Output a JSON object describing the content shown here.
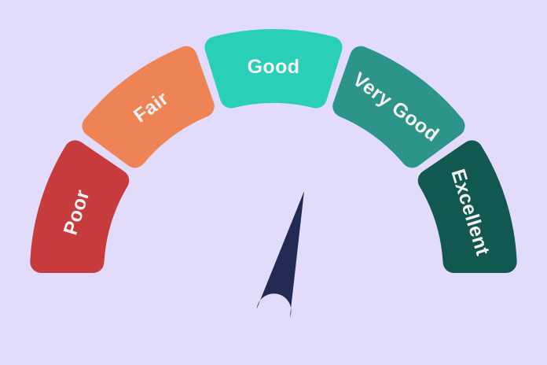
{
  "background_color": "#E3DBFA",
  "chart_data": {
    "type": "gauge",
    "title": "",
    "arc_span_deg": 180,
    "segment_span_deg": 34.2,
    "segment_gap_deg": 2.25,
    "categories": [
      "Poor",
      "Fair",
      "Good",
      "Very Good",
      "Excellent"
    ],
    "colors": [
      "#C83B3C",
      "#EE8455",
      "#2ACFB8",
      "#2D9489",
      "#115950"
    ],
    "label_color": "#F7F3F2",
    "needle": {
      "color": "#232B54",
      "angle_from_vertical_deg": 14.2,
      "points_to": "Good"
    }
  }
}
